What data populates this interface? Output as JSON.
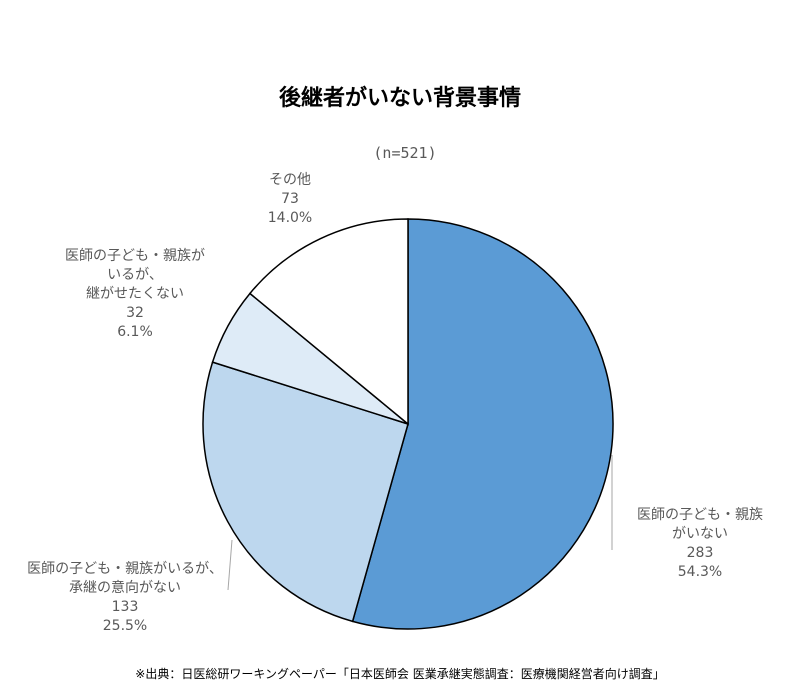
{
  "chart_data": {
    "type": "pie",
    "title": "後継者がいない背景事情",
    "subtitle": "(n=521)",
    "start": "top",
    "direction": "clockwise",
    "slices": [
      {
        "label_lines": [
          "医師の子ども・親族",
          "がいない"
        ],
        "count": "283",
        "percent": "54.3%",
        "value": 54.3,
        "color": "#5b9bd5"
      },
      {
        "label_lines": [
          "医師の子ども・親族がいるが、",
          "承継の意向がない"
        ],
        "count": "133",
        "percent": "25.5%",
        "value": 25.5,
        "color": "#bdd7ee"
      },
      {
        "label_lines": [
          "医師の子ども・親族が",
          "いるが、",
          "継がせたくない"
        ],
        "count": "32",
        "percent": "6.1%",
        "value": 6.1,
        "color": "#deebf7"
      },
      {
        "label_lines": [
          "その他"
        ],
        "count": "73",
        "percent": "14.0%",
        "value": 14.0,
        "color": "#ffffff"
      }
    ],
    "source": "※出典：日医総研ワーキングペーパー「日本医師会 医業承継実態調査：医療機関経営者向け調査」"
  }
}
